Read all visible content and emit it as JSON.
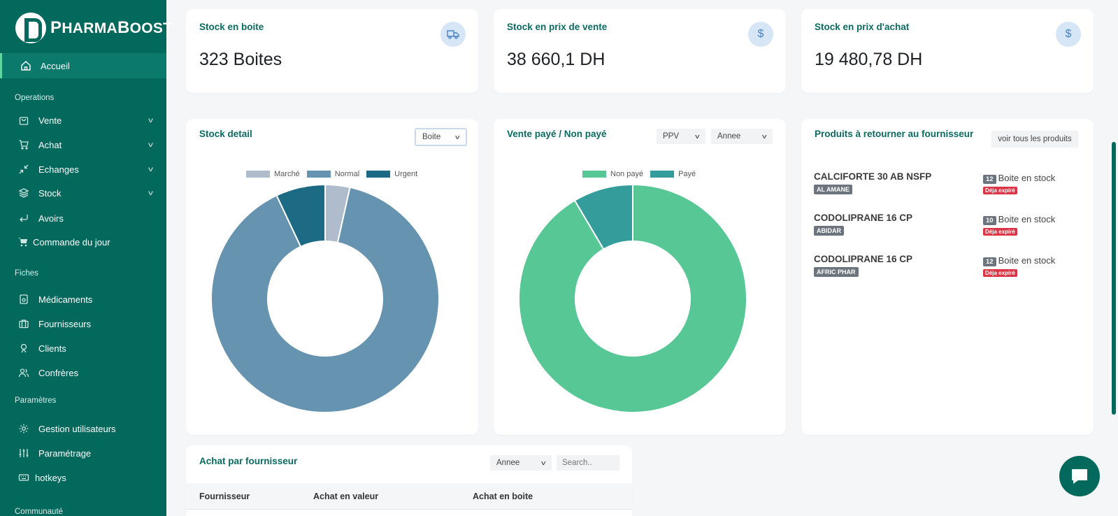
{
  "brand": {
    "name_first": "P",
    "name_rest": "HARMA",
    "name_second_first": "B",
    "name_second_rest": "OOST"
  },
  "sidebar": {
    "home": "Accueil",
    "sections": {
      "operations": "Operations",
      "fiches": "Fiches",
      "parametres": "Paramètres",
      "communaute": "Communauté"
    },
    "operations": [
      {
        "label": "Vente",
        "icon": "bag-icon"
      },
      {
        "label": "Achat",
        "icon": "cart-icon"
      },
      {
        "label": "Echanges",
        "icon": "swap-icon"
      },
      {
        "label": "Stock",
        "icon": "layers-icon"
      },
      {
        "label": "Avoirs",
        "icon": "return-icon"
      },
      {
        "label": "Commande du jour",
        "icon": "cart-filled-icon"
      }
    ],
    "fiches": [
      {
        "label": "Médicaments",
        "icon": "medicine-icon"
      },
      {
        "label": "Fournisseurs",
        "icon": "briefcase-icon"
      },
      {
        "label": "Clients",
        "icon": "user-icon"
      },
      {
        "label": "Confrères",
        "icon": "users-icon"
      }
    ],
    "parametres": [
      {
        "label": "Gestion utilisateurs",
        "icon": "gear-icon"
      },
      {
        "label": "Paramétrage",
        "icon": "sliders-icon"
      },
      {
        "label": "hotkeys",
        "icon": "keyboard-icon"
      }
    ]
  },
  "kpis": [
    {
      "title": "Stock en boite",
      "value": "323 Boites",
      "icon": "truck-icon"
    },
    {
      "title": "Stock en prix de vente",
      "value": "38 660,1 DH",
      "icon": "dollar-icon",
      "symbol": "$"
    },
    {
      "title": "Stock en prix d'achat",
      "value": "19 480,78 DH",
      "icon": "dollar-icon",
      "symbol": "$"
    }
  ],
  "stock_detail": {
    "title": "Stock detail",
    "select": "Boite"
  },
  "vente": {
    "title": "Vente payé / Non payé",
    "select1": "PPV",
    "select2": "Annee"
  },
  "chart_data": [
    {
      "type": "pie",
      "categories": [
        "Marché",
        "Normal",
        "Urgent"
      ],
      "values": [
        3.5,
        89.5,
        7
      ],
      "colors": [
        "#aebccb",
        "#6593b0",
        "#1d6a84"
      ],
      "legend": "top",
      "donut": true
    },
    {
      "type": "pie",
      "categories": [
        "Non payé",
        "Payé"
      ],
      "values": [
        91.5,
        8.5
      ],
      "colors": [
        "#57c795",
        "#359c9c"
      ],
      "legend": "top",
      "donut": true
    }
  ],
  "returns": {
    "title": "Produits à retourner au fournisseur",
    "button": "voir tous les produits",
    "stock_label": "Boite en stock",
    "expired_label": "Déja expiré",
    "items": [
      {
        "name": "CALCIFORTE 30 AB NSFP",
        "supplier": "AL AMANE",
        "count": "12"
      },
      {
        "name": "CODOLIPRANE 16 CP",
        "supplier": "ABIDAR",
        "count": "10"
      },
      {
        "name": "CODOLIPRANE 16 CP",
        "supplier": "AFRIC PHAR",
        "count": "12"
      }
    ]
  },
  "achat": {
    "title": "Achat par fournisseur",
    "select": "Annee",
    "search_placeholder": "Search..",
    "columns": [
      "Fournisseur",
      "Achat en valeur",
      "Achat en boite"
    ]
  }
}
